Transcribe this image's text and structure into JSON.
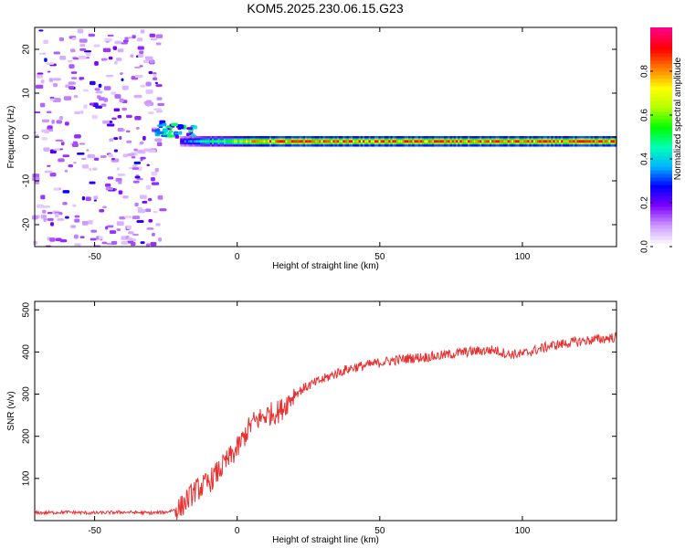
{
  "title": "KOM5.2025.230.06.15.G23",
  "colors": {
    "line": "#e83030",
    "axis": "#000000"
  },
  "chart_data": [
    {
      "type": "heatmap",
      "xlabel": "Height of straight line (km)",
      "ylabel": "Frequency (Hz)",
      "xlim": [
        -71,
        133
      ],
      "ylim": [
        -25,
        25
      ],
      "xticks": [
        -50,
        0,
        50,
        100
      ],
      "yticks": [
        -20,
        -10,
        0,
        10,
        20
      ],
      "colorbar": {
        "label": "Normalized spectral amplitude",
        "range": [
          0,
          1
        ],
        "ticks": [
          "0.0",
          "0.2",
          "0.4",
          "0.6",
          "0.8"
        ],
        "colormap": [
          "#ffffff",
          "#cc99ff",
          "#7d00ff",
          "#0000ff",
          "#00b4ff",
          "#00ffb4",
          "#00ff00",
          "#b4ff00",
          "#ffff00",
          "#ff7f00",
          "#ff0000",
          "#ff0080"
        ]
      },
      "features": [
        {
          "name": "noise",
          "x_range": [
            -71,
            -26
          ],
          "freq_range": [
            -25,
            25
          ],
          "amplitude": 0.1
        },
        {
          "name": "signal-onset",
          "x_range": [
            -28,
            -15
          ],
          "freq_center": 1.5,
          "amplitude": 0.35
        },
        {
          "name": "signal-band",
          "x_range": [
            -20,
            133
          ],
          "freq_center": -1,
          "amplitude_peak": 0.95
        }
      ]
    },
    {
      "type": "line",
      "xlabel": "Height of straight line (km)",
      "ylabel": "SNR (v/v)",
      "xlim": [
        -71,
        133
      ],
      "ylim": [
        0,
        520
      ],
      "xticks": [
        -50,
        0,
        50,
        100
      ],
      "yticks": [
        100,
        200,
        300,
        400,
        500
      ],
      "series": [
        {
          "x": [
            -71,
            -60,
            -50,
            -40,
            -30,
            -25,
            -20,
            -15,
            -10,
            -5,
            0,
            5,
            10,
            15,
            20,
            25,
            30,
            35,
            40,
            45,
            50,
            55,
            60,
            70,
            80,
            90,
            95,
            100,
            105,
            110,
            120,
            133
          ],
          "values": [
            18,
            20,
            18,
            20,
            18,
            20,
            30,
            70,
            90,
            130,
            170,
            230,
            250,
            260,
            300,
            320,
            335,
            350,
            362,
            368,
            375,
            380,
            385,
            390,
            400,
            405,
            395,
            395,
            405,
            415,
            425,
            435
          ]
        }
      ]
    }
  ]
}
